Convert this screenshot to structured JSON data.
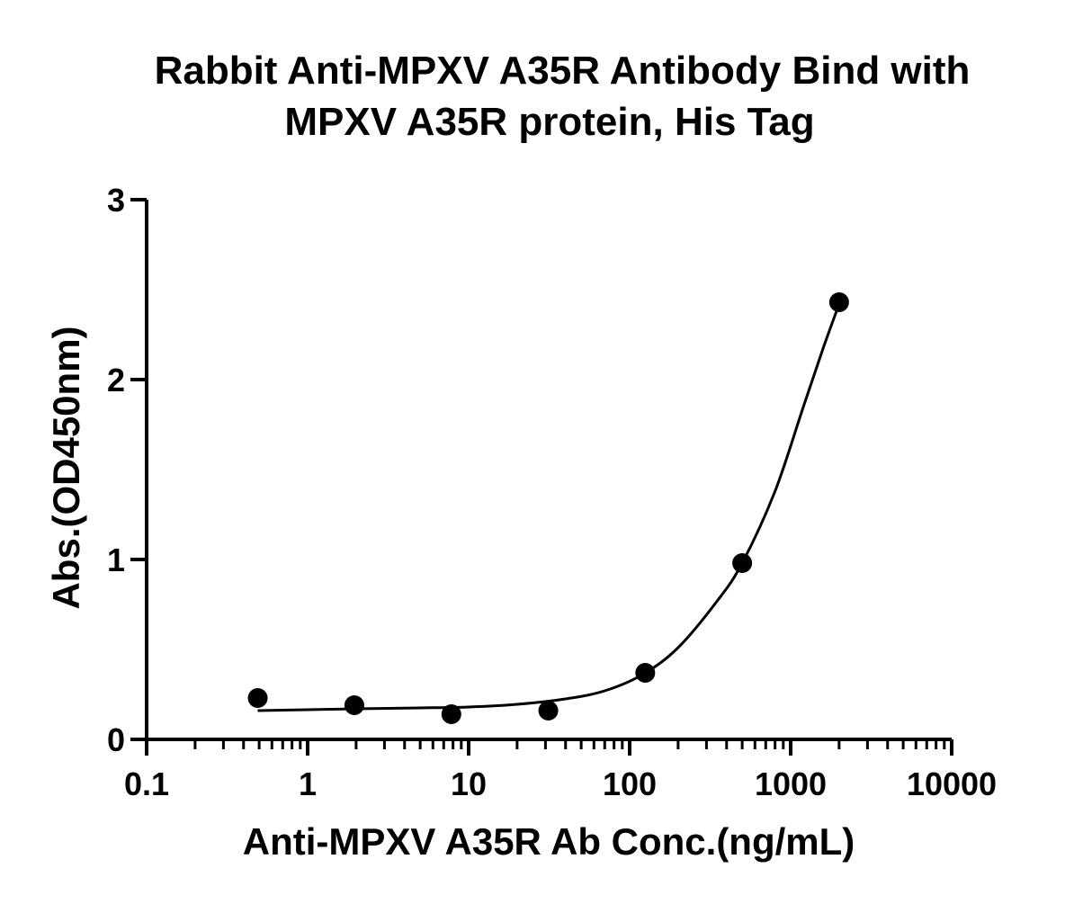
{
  "chart_data": {
    "type": "scatter",
    "title_lines": [
      "Rabbit Anti-MPXV A35R Antibody Bind with",
      "MPXV A35R protein, His Tag"
    ],
    "xlabel": "Anti-MPXV A35R Ab Conc.(ng/mL)",
    "ylabel": "Abs.(OD450nm)",
    "x_scale": "log",
    "xlim": [
      0.1,
      10000
    ],
    "ylim": [
      0,
      3
    ],
    "x_ticks": [
      {
        "value": 0.1,
        "label": "0.1"
      },
      {
        "value": 1,
        "label": "1"
      },
      {
        "value": 10,
        "label": "10"
      },
      {
        "value": 100,
        "label": "100"
      },
      {
        "value": 1000,
        "label": "1000"
      },
      {
        "value": 10000,
        "label": "10000"
      }
    ],
    "y_ticks": [
      {
        "value": 0,
        "label": "0"
      },
      {
        "value": 1,
        "label": "1"
      },
      {
        "value": 2,
        "label": "2"
      },
      {
        "value": 3,
        "label": "3"
      }
    ],
    "grid": false,
    "legend": "none",
    "points": [
      {
        "x": 0.49,
        "y": 0.23
      },
      {
        "x": 1.95,
        "y": 0.19
      },
      {
        "x": 7.81,
        "y": 0.14
      },
      {
        "x": 31.25,
        "y": 0.16
      },
      {
        "x": 125,
        "y": 0.37
      },
      {
        "x": 500,
        "y": 0.98
      },
      {
        "x": 2000,
        "y": 2.43
      }
    ],
    "fit_curve": [
      {
        "x": 0.49,
        "y": 0.16
      },
      {
        "x": 1,
        "y": 0.165
      },
      {
        "x": 2,
        "y": 0.17
      },
      {
        "x": 5,
        "y": 0.175
      },
      {
        "x": 10,
        "y": 0.18
      },
      {
        "x": 20,
        "y": 0.195
      },
      {
        "x": 40,
        "y": 0.225
      },
      {
        "x": 70,
        "y": 0.27
      },
      {
        "x": 120,
        "y": 0.36
      },
      {
        "x": 200,
        "y": 0.51
      },
      {
        "x": 350,
        "y": 0.77
      },
      {
        "x": 500,
        "y": 0.98
      },
      {
        "x": 800,
        "y": 1.38
      },
      {
        "x": 1200,
        "y": 1.85
      },
      {
        "x": 1600,
        "y": 2.18
      },
      {
        "x": 2000,
        "y": 2.42
      }
    ],
    "colors": {
      "marker": "#000000",
      "line": "#000000",
      "axis": "#000000"
    }
  }
}
